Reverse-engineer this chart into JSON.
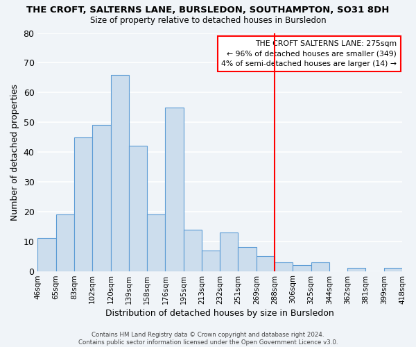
{
  "title_line1": "THE CROFT, SALTERNS LANE, BURSLEDON, SOUTHAMPTON, SO31 8DH",
  "title_line2": "Size of property relative to detached houses in Bursledon",
  "xlabel": "Distribution of detached houses by size in Bursledon",
  "ylabel": "Number of detached properties",
  "bin_labels": [
    "46sqm",
    "65sqm",
    "83sqm",
    "102sqm",
    "120sqm",
    "139sqm",
    "158sqm",
    "176sqm",
    "195sqm",
    "213sqm",
    "232sqm",
    "251sqm",
    "269sqm",
    "288sqm",
    "306sqm",
    "325sqm",
    "344sqm",
    "362sqm",
    "381sqm",
    "399sqm",
    "418sqm"
  ],
  "bar_heights": [
    11,
    19,
    45,
    49,
    66,
    42,
    19,
    55,
    14,
    7,
    13,
    8,
    5,
    3,
    2,
    3,
    0,
    1,
    0,
    1
  ],
  "bar_color": "#ccdded",
  "bar_edge_color": "#5b9bd5",
  "vline_x": 12.5,
  "vline_color": "red",
  "ylim": [
    0,
    80
  ],
  "annotation_title": "THE CROFT SALTERNS LANE: 275sqm",
  "annotation_line1": "← 96% of detached houses are smaller (349)",
  "annotation_line2": "4% of semi-detached houses are larger (14) →",
  "footer_line1": "Contains HM Land Registry data © Crown copyright and database right 2024.",
  "footer_line2": "Contains public sector information licensed under the Open Government Licence v3.0.",
  "background_color": "#f0f4f8",
  "grid_color": "#ffffff"
}
